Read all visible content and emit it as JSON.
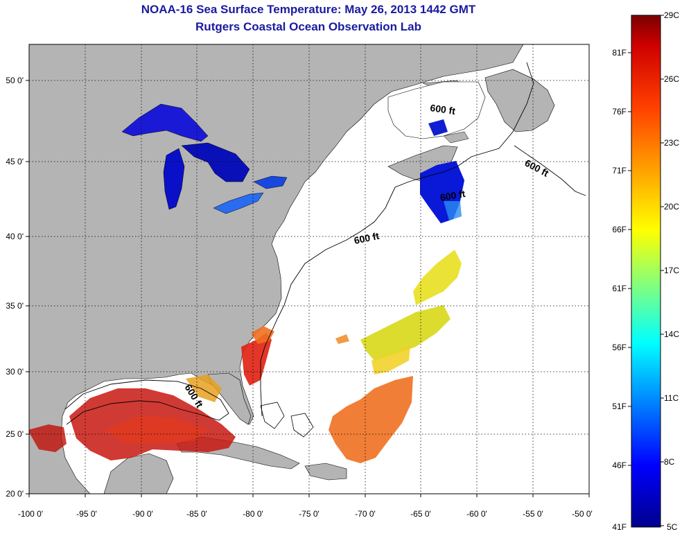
{
  "title": "NOAA-16 Sea Surface Temperature:  May 26, 2013 1442 GMT",
  "subtitle": "Rutgers Coastal Ocean Observation Lab",
  "lat_labels": [
    "50 0'",
    "45 0'",
    "40 0'",
    "35 0'",
    "30 0'",
    "25 0'",
    "20 0'"
  ],
  "lon_labels": [
    "-100 0'",
    "-95 0'",
    "-90 0'",
    "-85 0'",
    "-80 0'",
    "-75 0'",
    "-70 0'",
    "-65 0'",
    "-60 0'",
    "-55 0'",
    "-50 0'"
  ],
  "isobath_label": "600 ft",
  "colorbar": {
    "celsius": [
      "29C",
      "26C",
      "23C",
      "20C",
      "17C",
      "14C",
      "11C",
      "8C",
      "5C"
    ],
    "fahrenheit": [
      "81F",
      "76F",
      "71F",
      "66F",
      "61F",
      "56F",
      "51F",
      "46F",
      "41F"
    ]
  },
  "colors": {
    "land": "#b4b4b4",
    "ocean": "#ffffff",
    "title": "#1a1aa0"
  }
}
